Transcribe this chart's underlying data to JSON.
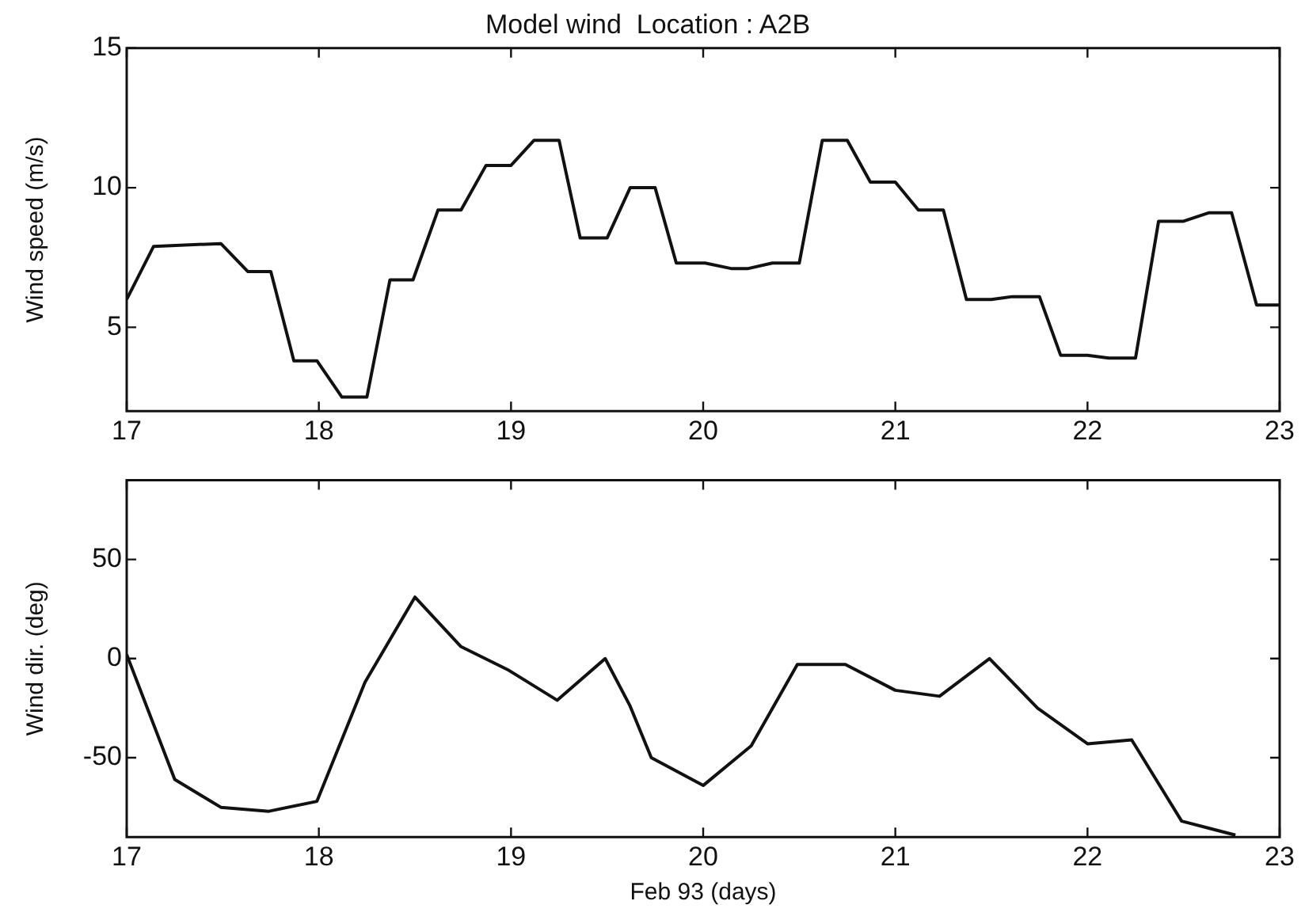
{
  "chart_data": [
    {
      "type": "line",
      "title": "Model wind  Location : A2B",
      "ylabel": "Wind speed (m/s)",
      "series": [
        {
          "color": "#111111",
          "x": [
            17,
            17.14,
            17.49,
            17.63,
            17.75,
            17.87,
            17.99,
            18.12,
            18.25,
            18.37,
            18.49,
            18.62,
            18.74,
            18.87,
            19.0,
            19.12,
            19.25,
            19.36,
            19.5,
            19.62,
            19.75,
            19.86,
            20.01,
            20.15,
            20.23,
            20.36,
            20.5,
            20.62,
            20.75,
            20.87,
            21.0,
            21.12,
            21.25,
            21.37,
            21.5,
            21.61,
            21.75,
            21.86,
            22.0,
            22.11,
            22.25,
            22.37,
            22.5,
            22.63,
            22.75,
            22.88,
            23.0
          ],
          "values": [
            6.0,
            7.9,
            8.0,
            7.0,
            7.0,
            3.8,
            3.8,
            2.5,
            2.5,
            6.7,
            6.7,
            9.2,
            9.2,
            10.8,
            10.8,
            11.7,
            11.7,
            8.2,
            8.2,
            10.0,
            10.0,
            7.3,
            7.3,
            7.1,
            7.1,
            7.3,
            7.3,
            11.7,
            11.7,
            10.2,
            10.2,
            9.2,
            9.2,
            6.0,
            6.0,
            6.1,
            6.1,
            4.0,
            4.0,
            3.9,
            3.9,
            8.8,
            8.8,
            9.1,
            9.1,
            5.8,
            5.8
          ]
        }
      ],
      "xlim": [
        17,
        23
      ],
      "xticks": [
        17,
        18,
        19,
        20,
        21,
        22,
        23
      ],
      "ylim": [
        2,
        15
      ],
      "yticks": [
        5,
        10,
        15
      ],
      "grid": false,
      "legend": false,
      "marker": "none",
      "line_style": "solid"
    },
    {
      "type": "line",
      "xlabel": "Feb 93 (days)",
      "ylabel": "Wind dir. (deg)",
      "series": [
        {
          "color": "#111111",
          "x": [
            17,
            17.25,
            17.49,
            17.74,
            17.99,
            18.24,
            18.5,
            18.74,
            18.99,
            19.24,
            19.49,
            19.62,
            19.73,
            20.0,
            20.25,
            20.49,
            20.74,
            21.0,
            21.23,
            21.49,
            21.74,
            22.0,
            22.23,
            22.49,
            22.77
          ],
          "values": [
            2,
            -61,
            -75,
            -77,
            -72,
            -12,
            31,
            6,
            -6,
            -21,
            0,
            -24,
            -50,
            -64,
            -44,
            -3,
            -3,
            -16,
            -19,
            0,
            -25,
            -43,
            -41,
            -82,
            -89
          ]
        }
      ],
      "xlim": [
        17,
        23
      ],
      "xticks": [
        17,
        18,
        19,
        20,
        21,
        22,
        23
      ],
      "ylim": [
        -90,
        90
      ],
      "yticks": [
        -50,
        0,
        50
      ],
      "grid": false,
      "legend": false,
      "marker": "none",
      "line_style": "solid"
    }
  ]
}
